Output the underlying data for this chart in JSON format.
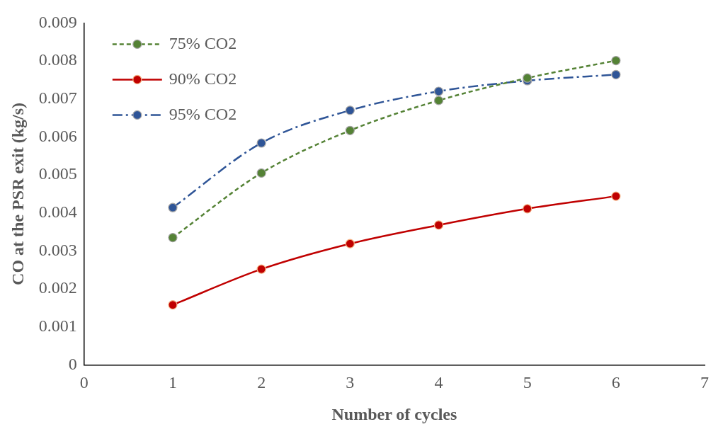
{
  "chart_data": {
    "type": "line",
    "xlabel": "Number of cycles",
    "ylabel": "CO at the PSR exit (kg/s)",
    "x": [
      1,
      2,
      3,
      4,
      5,
      6
    ],
    "series": [
      {
        "name": "75% CO2",
        "color": "#548235",
        "line_style": "dashed",
        "values": [
          0.00335,
          0.00505,
          0.00617,
          0.00696,
          0.00755,
          0.00801
        ]
      },
      {
        "name": "90% CO2",
        "color": "#c00000",
        "line_style": "solid",
        "values": [
          0.00158,
          0.00252,
          0.00319,
          0.00368,
          0.00411,
          0.00444
        ]
      },
      {
        "name": "95% CO2",
        "color": "#2f5597",
        "line_style": "dashdot",
        "values": [
          0.00414,
          0.00584,
          0.0067,
          0.0072,
          0.00748,
          0.00764
        ]
      }
    ],
    "xlim": [
      0,
      7
    ],
    "xticks": [
      0,
      1,
      2,
      3,
      4,
      5,
      6,
      7
    ],
    "ylim": [
      0,
      0.009
    ],
    "yticks": [
      0,
      0.001,
      0.002,
      0.003,
      0.004,
      0.005,
      0.006,
      0.007,
      0.008,
      0.009
    ],
    "grid": false,
    "legend": "top left",
    "marker": "circle"
  }
}
